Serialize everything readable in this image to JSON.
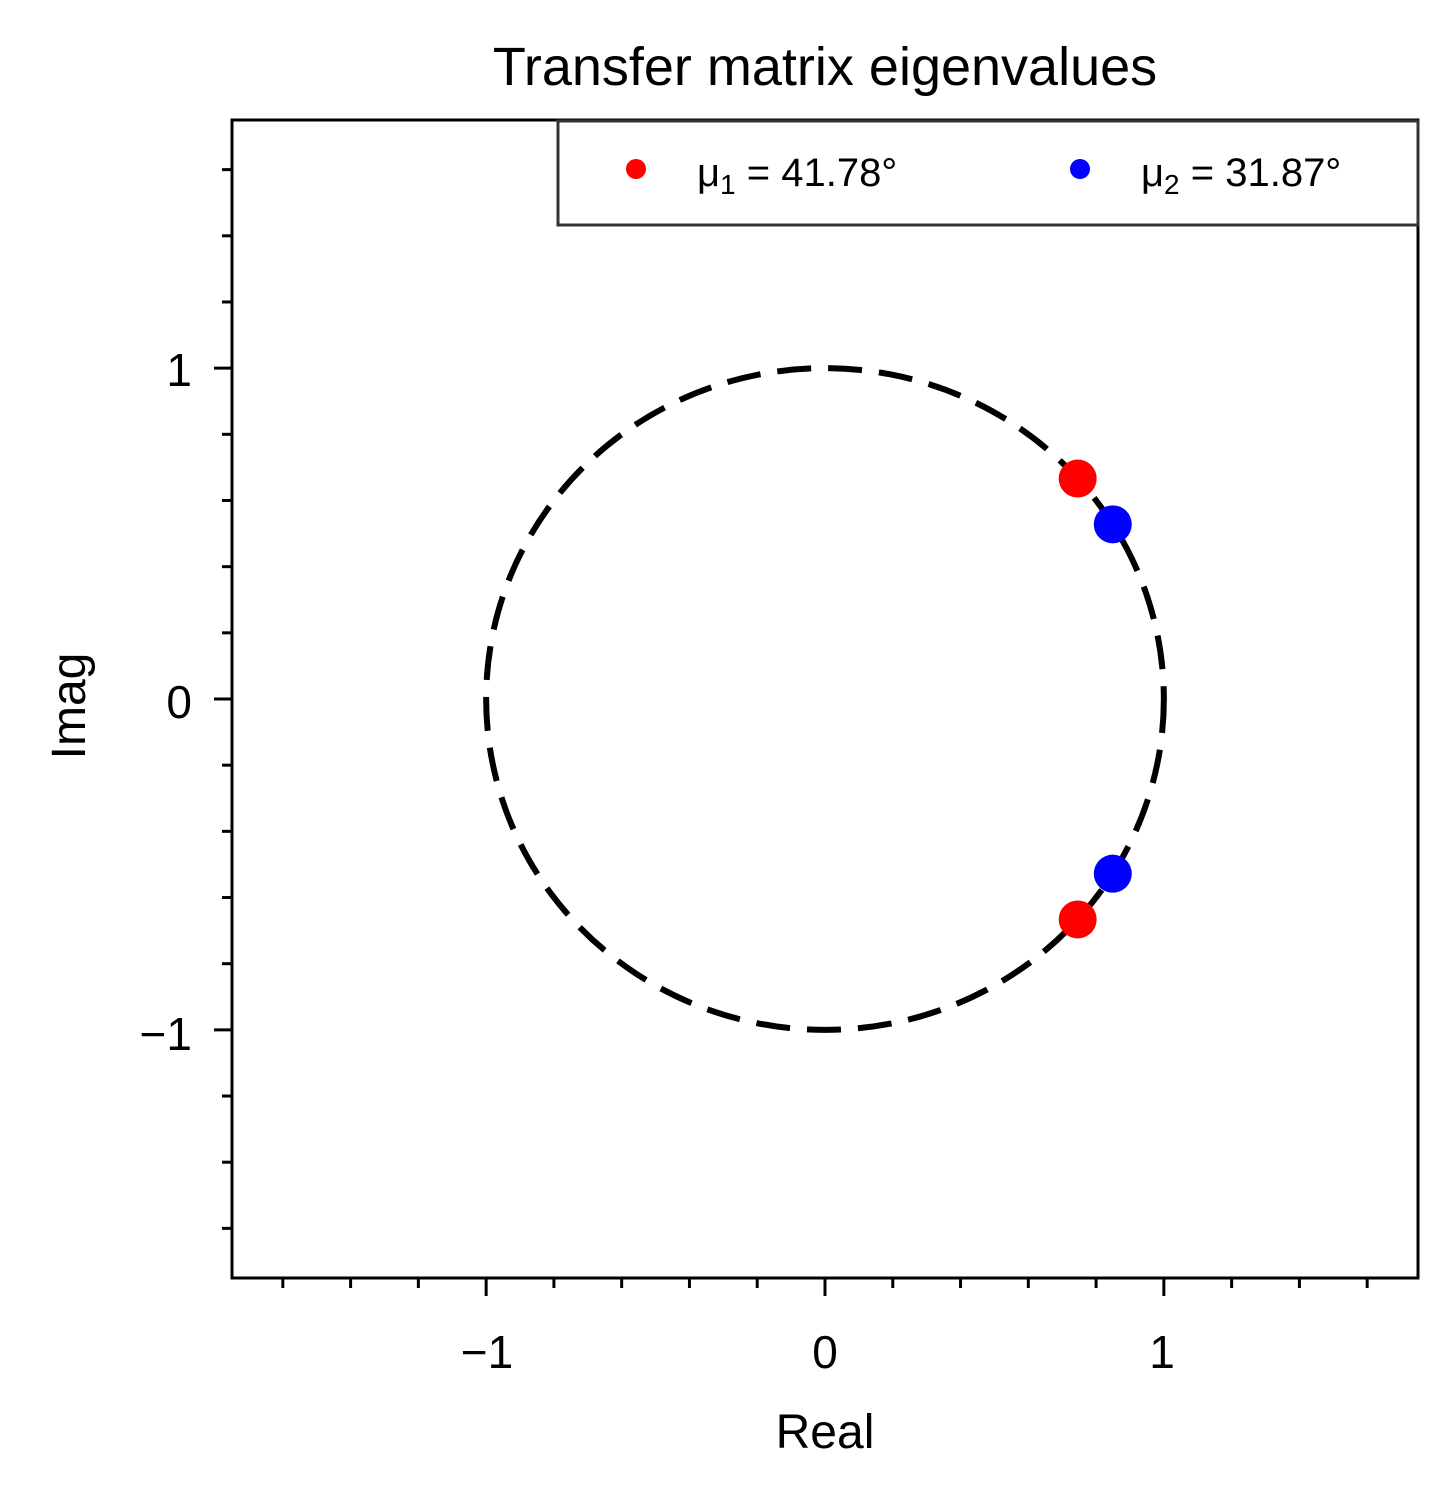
{
  "chart_data": {
    "type": "scatter",
    "title": "Transfer matrix eigenvalues",
    "xlabel": "Real",
    "ylabel": "Imag",
    "xlim": [
      -1.75,
      1.75
    ],
    "ylim": [
      -1.75,
      1.75
    ],
    "xticks": [
      -1,
      0,
      1
    ],
    "yticks": [
      -1,
      0,
      1
    ],
    "tick_labels": {
      "neg_one": "−1",
      "zero": "0",
      "one": "1"
    },
    "legend_placement": "top-right",
    "unit_circle": {
      "radius": 1,
      "style": "dashed",
      "color": "#000000"
    },
    "series": [
      {
        "name": "μ₁ = 41.78°",
        "name_symbol": "μ",
        "name_sub": "1",
        "name_value": " = 41.78°",
        "color": "#ff0000",
        "angle_deg": 41.78,
        "points": [
          {
            "x": 0.7457,
            "y": 0.6663
          },
          {
            "x": 0.7457,
            "y": -0.6663
          }
        ]
      },
      {
        "name": "μ₂ = 31.87°",
        "name_symbol": "μ",
        "name_sub": "2",
        "name_value": " = 31.87°",
        "color": "#0000ff",
        "angle_deg": 31.87,
        "points": [
          {
            "x": 0.8493,
            "y": 0.5279
          },
          {
            "x": 0.8493,
            "y": -0.5279
          }
        ]
      }
    ]
  }
}
